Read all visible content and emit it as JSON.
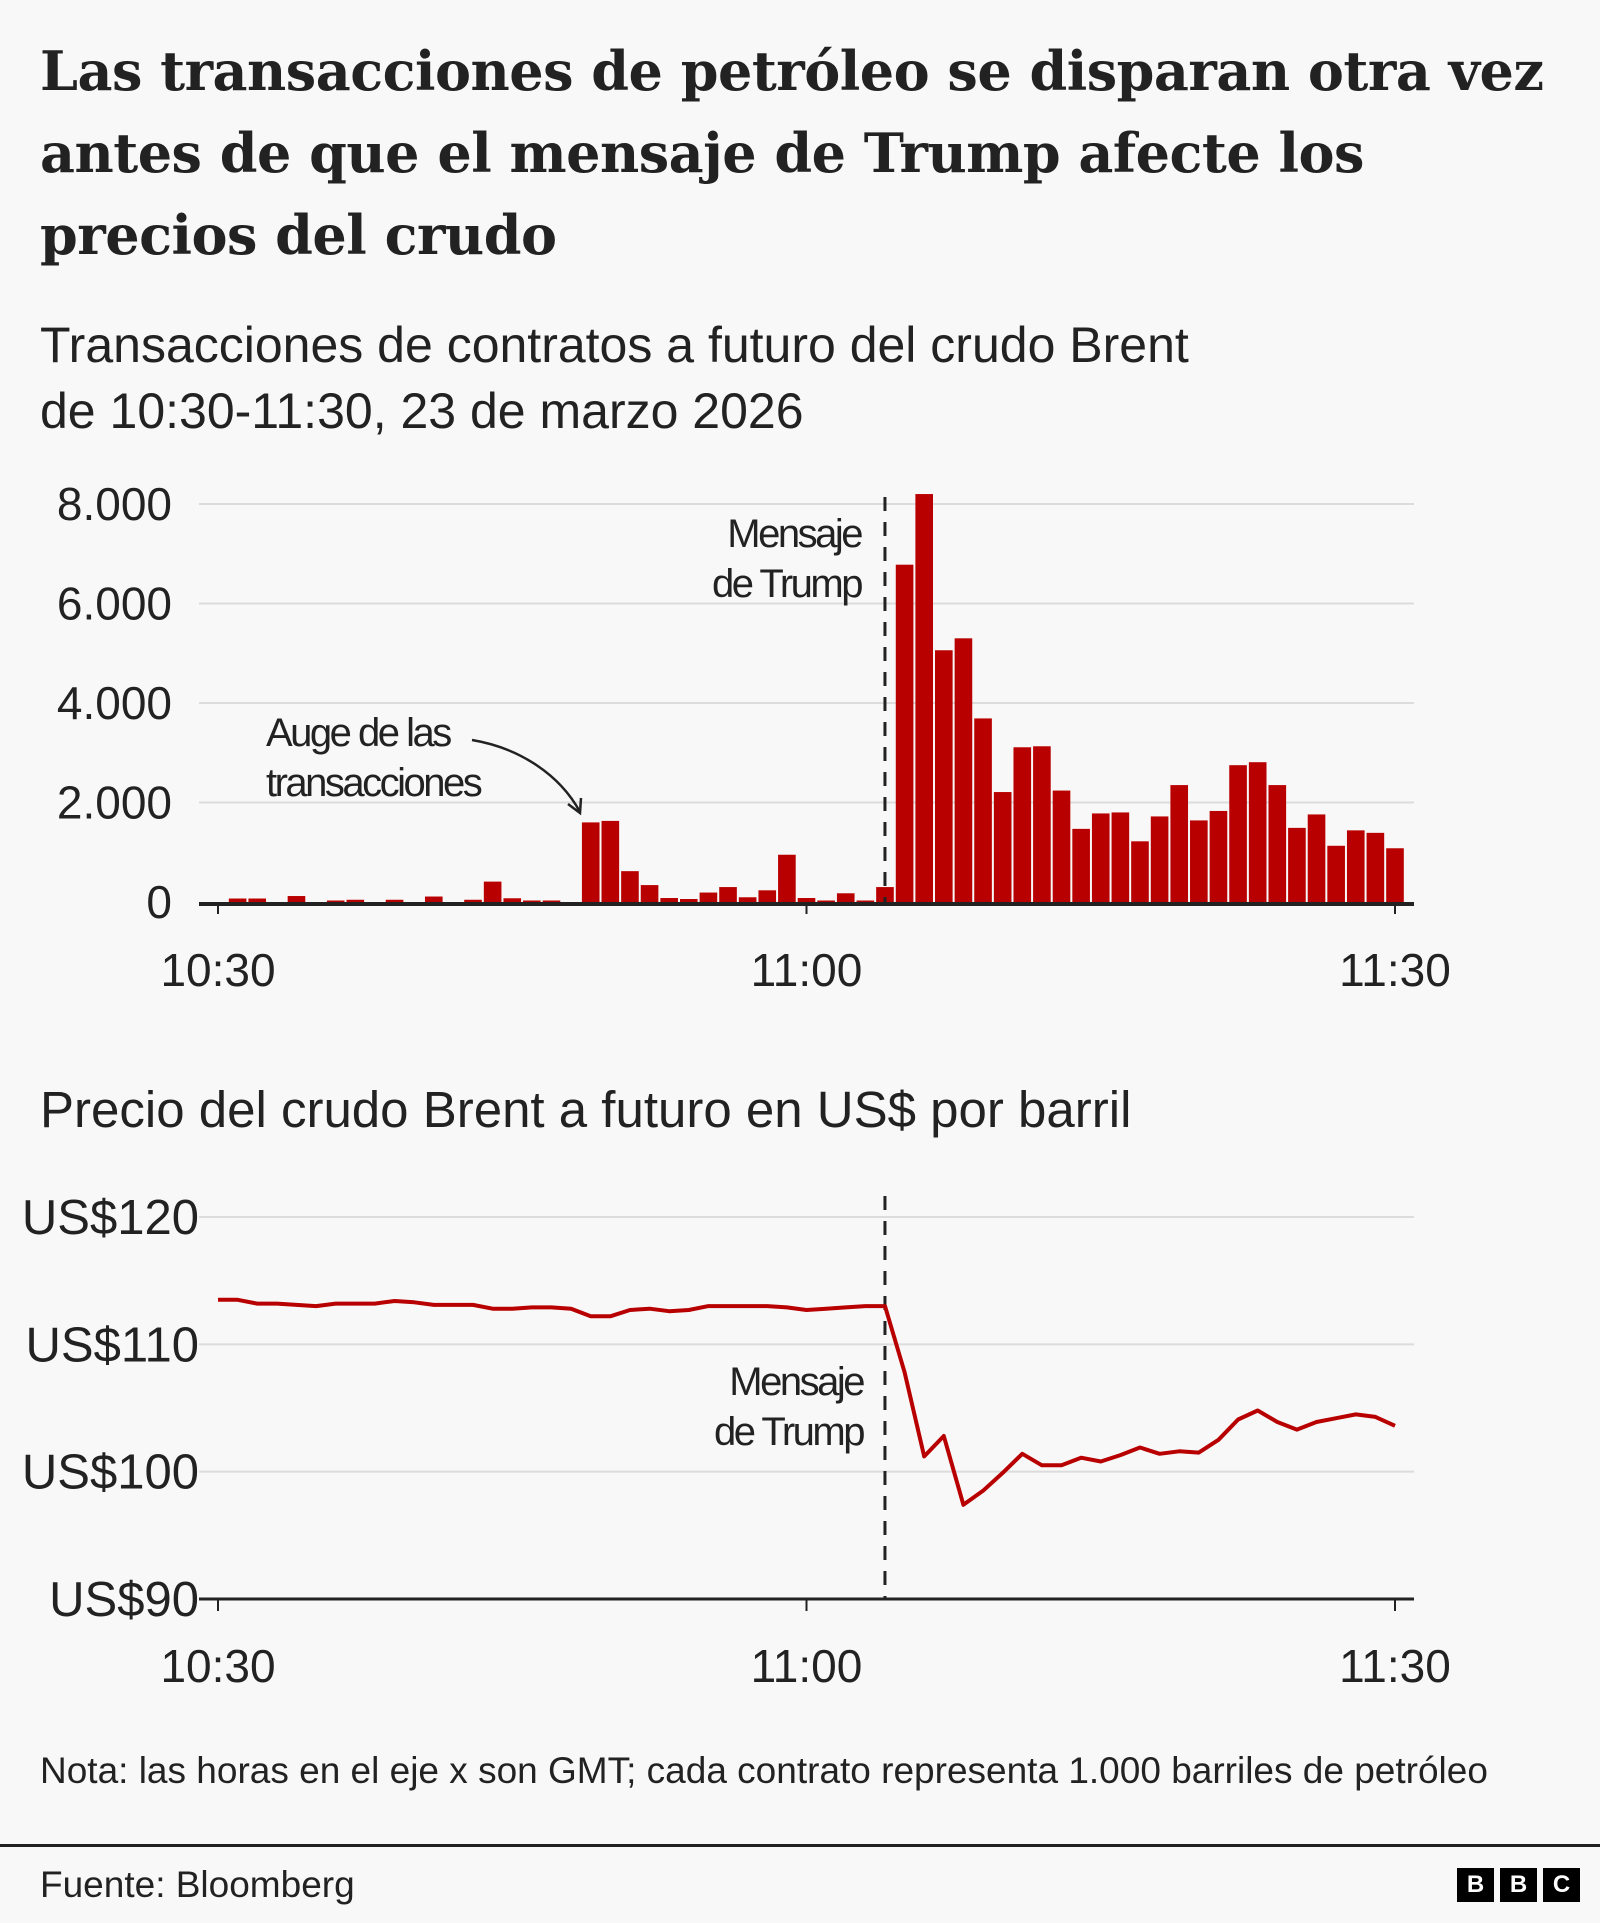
{
  "title": "Las transacciones de petróleo se disparan otra vez antes de que el mensaje de Trump afecte los precios del crudo",
  "subtitle_line1": "Transacciones de contratos a futuro del crudo Brent",
  "subtitle_line2": "de 10:30-11:30, 23 de marzo 2026",
  "note": "Nota: las horas en el eje x son GMT; cada contrato representa 1.000 barriles de petróleo",
  "source": "Fuente: Bloomberg",
  "logo": [
    "B",
    "B",
    "C"
  ],
  "colors": {
    "bar": "#b80000",
    "line": "#b80000",
    "grid": "#dcdcdc",
    "axis": "#222222",
    "background": "#f8f8f8"
  },
  "chart_data": [
    {
      "type": "bar",
      "title": "",
      "x_unit": "minute (GMT)",
      "x": [
        "10:30",
        "10:31",
        "10:32",
        "10:33",
        "10:34",
        "10:35",
        "10:36",
        "10:37",
        "10:38",
        "10:39",
        "10:40",
        "10:41",
        "10:42",
        "10:43",
        "10:44",
        "10:45",
        "10:46",
        "10:47",
        "10:48",
        "10:49",
        "10:50",
        "10:51",
        "10:52",
        "10:53",
        "10:54",
        "10:55",
        "10:56",
        "10:57",
        "10:58",
        "10:59",
        "11:00",
        "11:01",
        "11:02",
        "11:03",
        "11:04",
        "11:05",
        "11:06",
        "11:07",
        "11:08",
        "11:09",
        "11:10",
        "11:11",
        "11:12",
        "11:13",
        "11:14",
        "11:15",
        "11:16",
        "11:17",
        "11:18",
        "11:19",
        "11:20",
        "11:21",
        "11:22",
        "11:23",
        "11:24",
        "11:25",
        "11:26",
        "11:27",
        "11:28",
        "11:29",
        "11:30"
      ],
      "values": [
        0,
        70,
        70,
        0,
        120,
        0,
        30,
        45,
        0,
        45,
        0,
        110,
        0,
        45,
        410,
        75,
        30,
        30,
        0,
        1600,
        1630,
        620,
        340,
        80,
        60,
        190,
        300,
        95,
        235,
        950,
        80,
        30,
        175,
        30,
        300,
        6780,
        8200,
        5060,
        5300,
        3690,
        2210,
        3110,
        3130,
        2240,
        1470,
        1780,
        1800,
        1220,
        1720,
        2350,
        1640,
        1830,
        2750,
        2810,
        2350,
        1490,
        1760,
        1130,
        1440,
        1390,
        1080
      ],
      "ylim": [
        0,
        8000
      ],
      "yticks": [
        "0",
        "2.000",
        "4.000",
        "6.000",
        "8.000"
      ],
      "xticks": [
        "10:30",
        "11:00",
        "11:30"
      ],
      "grid": true,
      "annotations": [
        {
          "text_line1": "Mensaje",
          "text_line2": "de Trump",
          "at": "11:04"
        },
        {
          "text_line1": "Auge de las",
          "text_line2": "transacciones",
          "at": "10:49"
        }
      ]
    },
    {
      "type": "line",
      "title": "Precio del crudo Brent a futuro en US$ por barril",
      "x": [
        "10:30",
        "10:31",
        "10:32",
        "10:33",
        "10:34",
        "10:35",
        "10:36",
        "10:37",
        "10:38",
        "10:39",
        "10:40",
        "10:41",
        "10:42",
        "10:43",
        "10:44",
        "10:45",
        "10:46",
        "10:47",
        "10:48",
        "10:49",
        "10:50",
        "10:51",
        "10:52",
        "10:53",
        "10:54",
        "10:55",
        "10:56",
        "10:57",
        "10:58",
        "10:59",
        "11:00",
        "11:01",
        "11:02",
        "11:03",
        "11:04",
        "11:05",
        "11:06",
        "11:07",
        "11:08",
        "11:09",
        "11:10",
        "11:11",
        "11:12",
        "11:13",
        "11:14",
        "11:15",
        "11:16",
        "11:17",
        "11:18",
        "11:19",
        "11:20",
        "11:21",
        "11:22",
        "11:23",
        "11:24",
        "11:25",
        "11:26",
        "11:27",
        "11:28",
        "11:29",
        "11:30"
      ],
      "values": [
        113.5,
        113.5,
        113.2,
        113.2,
        113.1,
        113.0,
        113.2,
        113.2,
        113.2,
        113.4,
        113.3,
        113.1,
        113.1,
        113.1,
        112.8,
        112.8,
        112.9,
        112.9,
        112.8,
        112.2,
        112.2,
        112.7,
        112.8,
        112.6,
        112.7,
        113.0,
        113.0,
        113.0,
        113.0,
        112.9,
        112.7,
        112.8,
        112.9,
        113.0,
        113.0,
        107.8,
        101.2,
        102.8,
        97.4,
        98.5,
        99.9,
        101.4,
        100.5,
        100.5,
        101.1,
        100.8,
        101.3,
        101.9,
        101.4,
        101.6,
        101.5,
        102.5,
        104.1,
        104.8,
        103.9,
        103.3,
        103.9,
        104.2,
        104.5,
        104.3,
        103.6
      ],
      "ylim": [
        90,
        120
      ],
      "yticks": [
        "US$90",
        "US$100",
        "US$110",
        "US$120"
      ],
      "xticks": [
        "10:30",
        "11:00",
        "11:30"
      ],
      "grid": true,
      "annotations": [
        {
          "text_line1": "Mensaje",
          "text_line2": "de Trump",
          "at": "11:04"
        }
      ]
    }
  ]
}
